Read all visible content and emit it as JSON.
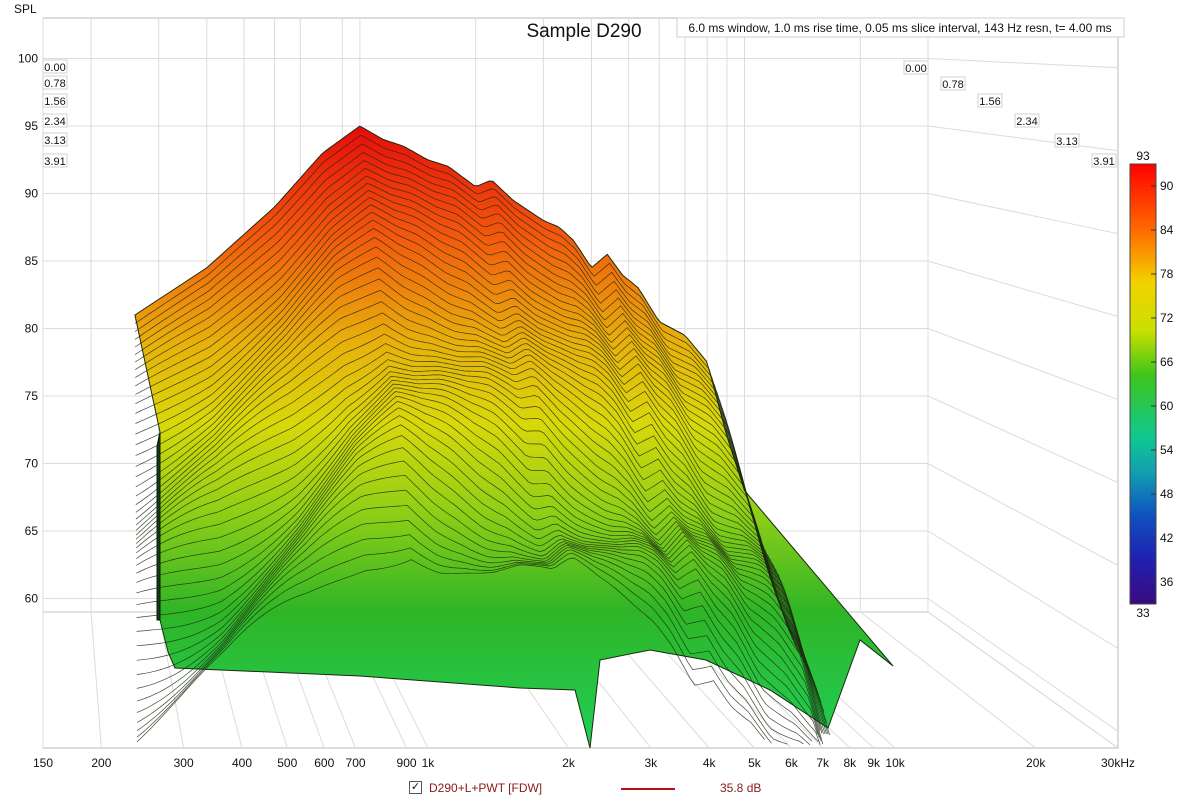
{
  "chart_data": {
    "type": "waterfall-3d",
    "title": "Sample D290",
    "info": "6.0 ms window, 1.0 ms rise time, 0.05 ms slice interval, 143 Hz resn, t= 4.00 ms",
    "ylabel": "SPL",
    "xunit": "kHz",
    "y_ticks": [
      "100",
      "95",
      "90",
      "85",
      "80",
      "75",
      "70",
      "65",
      "60"
    ],
    "y_tick_values": [
      100,
      95,
      90,
      85,
      80,
      75,
      70,
      65,
      60
    ],
    "ylim": [
      59,
      103
    ],
    "x_ticks": [
      "150",
      "200",
      "300",
      "400",
      "500",
      "600",
      "700",
      "900",
      "1k",
      "2k",
      "3k",
      "4k",
      "5k",
      "6k",
      "7k",
      "8k",
      "9k",
      "10k",
      "20k",
      "30kHz"
    ],
    "x_tick_values": [
      150,
      200,
      300,
      400,
      500,
      600,
      700,
      900,
      1000,
      2000,
      3000,
      4000,
      5000,
      6000,
      7000,
      8000,
      9000,
      10000,
      20000,
      30000
    ],
    "xlim": [
      150,
      30000
    ],
    "time_ticks": [
      "0.00",
      "0.78",
      "1.56",
      "2.34",
      "3.13",
      "3.91"
    ],
    "time_values_ms": [
      0.0,
      0.78,
      1.56,
      2.34,
      3.13,
      3.91
    ],
    "color_scale_ticks": [
      "93",
      "90",
      "84",
      "78",
      "72",
      "66",
      "60",
      "54",
      "48",
      "42",
      "36",
      "33"
    ],
    "color_scale_values": [
      93,
      90,
      84,
      78,
      72,
      66,
      60,
      54,
      48,
      42,
      36,
      33
    ],
    "color_scale_range": [
      33,
      93
    ],
    "first_slice": {
      "freq_hz": [
        260,
        400,
        600,
        800,
        1000,
        1150,
        1300,
        1500,
        1700,
        2000,
        2200,
        2500,
        3000,
        3300,
        3600,
        4000,
        4400,
        4800,
        5300,
        6000,
        7000,
        8000,
        9000,
        10000
      ],
      "spl_db": [
        81.0,
        84.5,
        89.0,
        93.0,
        95.0,
        94.0,
        93.5,
        92.5,
        92.0,
        90.5,
        91.0,
        89.5,
        88.0,
        87.5,
        86.5,
        84.5,
        85.5,
        84.0,
        83.0,
        80.5,
        79.5,
        77.5,
        72.0,
        68.0
      ]
    },
    "legend": [
      {
        "name": "D290+L+PWT [FDW]",
        "value": "35.8 dB",
        "color": "#b0101a",
        "checked": true
      }
    ]
  }
}
